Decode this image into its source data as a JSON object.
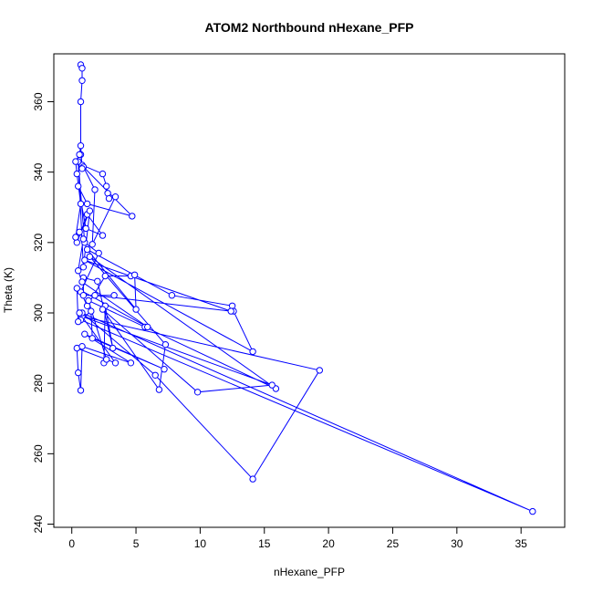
{
  "chart_data": {
    "type": "line",
    "title": "ATOM2 Northbound nHexane_PFP",
    "xlabel": "nHexane_PFP",
    "ylabel": "Theta (K)",
    "xlim": [
      -1.4,
      38.4
    ],
    "ylim": [
      239.1,
      373.6
    ],
    "xticks": [
      0,
      5,
      10,
      15,
      20,
      25,
      30,
      35
    ],
    "yticks": [
      240,
      260,
      280,
      300,
      320,
      340,
      360
    ],
    "grid": false,
    "legend": "none",
    "series_color": "#0000ff",
    "marker": "open-circle",
    "series": [
      {
        "values": [
          [
            0.7,
            370.5
          ],
          [
            0.8,
            369.5
          ],
          [
            0.8,
            366
          ],
          [
            0.7,
            360
          ],
          [
            0.7,
            345
          ],
          [
            0.8,
            342
          ],
          [
            2.4,
            339.5
          ],
          [
            2.7,
            336
          ],
          [
            2.8,
            334
          ],
          [
            2.9,
            332.5
          ],
          [
            3.4,
            333
          ],
          [
            1.6,
            319.5
          ],
          [
            1.8,
            335
          ],
          [
            0.9,
            341.5
          ],
          [
            4.7,
            327.5
          ],
          [
            1.2,
            331
          ],
          [
            0.5,
            336
          ],
          [
            1.1,
            324
          ],
          [
            2.4,
            322
          ],
          [
            1.2,
            328
          ],
          [
            0.4,
            320
          ],
          [
            1.4,
            329
          ],
          [
            0.9,
            313
          ],
          [
            0.5,
            343
          ],
          [
            1.0,
            320
          ],
          [
            2.1,
            317
          ],
          [
            0.7,
            306
          ],
          [
            1.2,
            302
          ],
          [
            2.6,
            310.5
          ],
          [
            4.6,
            310.5
          ],
          [
            4.9,
            310.8
          ],
          [
            5.0,
            301
          ],
          [
            1.2,
            318
          ],
          [
            7.8,
            305
          ],
          [
            12.5,
            302
          ],
          [
            12.6,
            300.5
          ],
          [
            14.1,
            289
          ],
          [
            1.0,
            315
          ],
          [
            12.4,
            300.5
          ],
          [
            1.8,
            305
          ],
          [
            3.3,
            305
          ],
          [
            0.9,
            305
          ],
          [
            0.9,
            310
          ],
          [
            2.0,
            309
          ],
          [
            3.2,
            290
          ],
          [
            2.6,
            302
          ],
          [
            2.5,
            285.8
          ],
          [
            2.7,
            286.8
          ],
          [
            1.3,
            303.5
          ],
          [
            5.7,
            296
          ],
          [
            15.9,
            278.5
          ],
          [
            1.4,
            316
          ],
          [
            7.3,
            291
          ],
          [
            6.8,
            278.2
          ],
          [
            2.4,
            301
          ],
          [
            9.8,
            277.5
          ],
          [
            15.6,
            279.5
          ],
          [
            0.8,
            299
          ],
          [
            19.3,
            283.7
          ],
          [
            14.1,
            252.8
          ],
          [
            6.5,
            282.3
          ],
          [
            0.8,
            300
          ],
          [
            35.9,
            243.6
          ],
          [
            0.7,
            298
          ],
          [
            0.6,
            300
          ],
          [
            3.4,
            285.8
          ],
          [
            0.4,
            290
          ],
          [
            0.5,
            283
          ],
          [
            0.7,
            278
          ],
          [
            0.8,
            290.5
          ],
          [
            4.6,
            285.8
          ],
          [
            1.0,
            294
          ],
          [
            7.2,
            284
          ],
          [
            1.6,
            292.8
          ],
          [
            1.5,
            300.5
          ],
          [
            0.5,
            297.5
          ],
          [
            0.4,
            307
          ],
          [
            5.9,
            296
          ],
          [
            0.8,
            308.8
          ],
          [
            0.5,
            312
          ],
          [
            0.9,
            321
          ],
          [
            0.6,
            323
          ],
          [
            0.3,
            321.5
          ],
          [
            0.7,
            331
          ],
          [
            0.4,
            339.5
          ],
          [
            0.3,
            343
          ],
          [
            0.6,
            345
          ],
          [
            0.7,
            347.5
          ],
          [
            0.8,
            341
          ]
        ]
      }
    ]
  }
}
